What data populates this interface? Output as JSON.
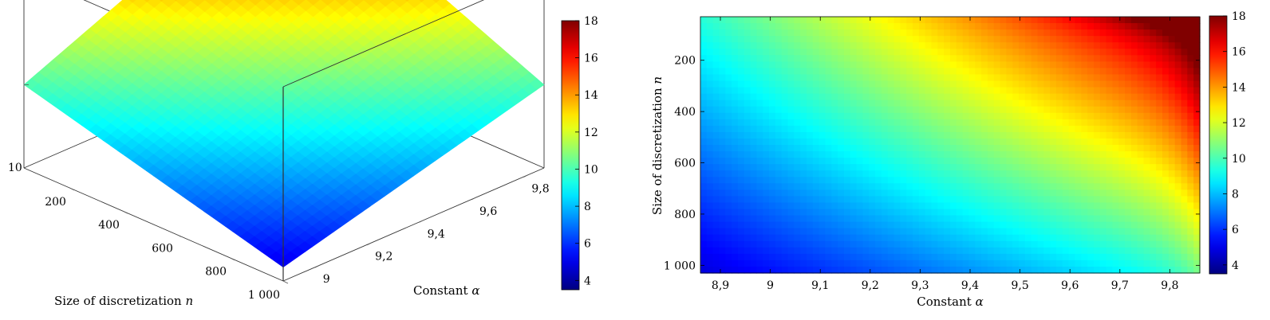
{
  "chart_data": [
    {
      "type": "surface",
      "xlabel": "Constant",
      "xlabel_symbol": "α",
      "ylabel": "Size of discretization",
      "ylabel_symbol": "n",
      "x_ticks": [
        9,
        9.2,
        9.4,
        9.6,
        9.8
      ],
      "x_tick_labels": [
        "9",
        "9,2",
        "9,4",
        "9,6",
        "9,8"
      ],
      "y_ticks": [
        200,
        400,
        600,
        800,
        1000
      ],
      "y_tick_labels": [
        "200",
        "400",
        "600",
        "800",
        "1 000"
      ],
      "z_ticks": [
        10
      ],
      "z_tick_labels": [
        "10"
      ],
      "xlim": [
        8.86,
        9.86
      ],
      "ylim": [
        30,
        1000
      ],
      "zlim": [
        4,
        18
      ],
      "corner_values": {
        "alpha_min_n_min": 10,
        "alpha_max_n_min": 18,
        "alpha_min_n_max": 5,
        "alpha_max_n_max": 10
      },
      "colorbar": {
        "range": [
          3.5,
          18
        ],
        "ticks": [
          4,
          6,
          8,
          10,
          12,
          14,
          16,
          18
        ],
        "tick_labels": [
          "4",
          "6",
          "8",
          "10",
          "12",
          "14",
          "16",
          "18"
        ],
        "colormap": "jet"
      }
    },
    {
      "type": "heatmap",
      "xlabel": "Constant",
      "xlabel_symbol": "α",
      "ylabel": "Size of discretization",
      "ylabel_symbol": "n",
      "x_ticks": [
        8.9,
        9,
        9.1,
        9.2,
        9.3,
        9.4,
        9.5,
        9.6,
        9.7,
        9.8
      ],
      "x_tick_labels": [
        "8,9",
        "9",
        "9,1",
        "9,2",
        "9,3",
        "9,4",
        "9,5",
        "9,6",
        "9,7",
        "9,8"
      ],
      "y_ticks": [
        200,
        400,
        600,
        800,
        1000
      ],
      "y_tick_labels": [
        "200",
        "400",
        "600",
        "800",
        "1 000"
      ],
      "xlim": [
        8.86,
        9.86
      ],
      "ylim": [
        30,
        1030
      ],
      "y_reversed": true,
      "corner_values": {
        "alpha_min_n_min": 9.5,
        "alpha_max_n_min": 18,
        "alpha_min_n_max": 4.8,
        "alpha_max_n_max": 9.5
      },
      "colorbar": {
        "range": [
          3.5,
          18
        ],
        "ticks": [
          4,
          6,
          8,
          10,
          12,
          14,
          16,
          18
        ],
        "tick_labels": [
          "4",
          "6",
          "8",
          "10",
          "12",
          "14",
          "16",
          "18"
        ],
        "colormap": "jet"
      }
    }
  ]
}
